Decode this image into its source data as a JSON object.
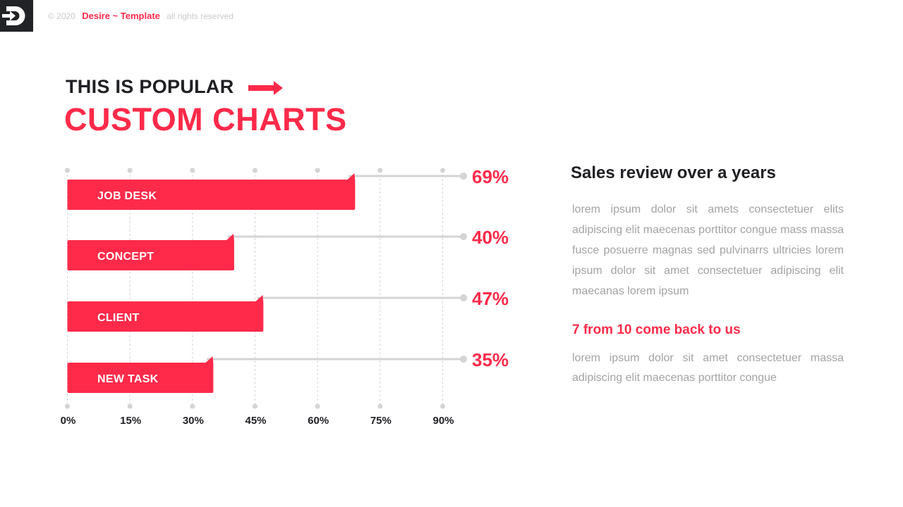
{
  "header": {
    "copyright": "© 2020",
    "brand": "Desire ~ Template",
    "rights": "all rights reserved",
    "logo_icon": "d-arrow-logo-icon"
  },
  "title": {
    "pre": "THIS IS POPULAR",
    "main": "CUSTOM CHARTS",
    "arrow_icon": "arrow-right-icon"
  },
  "chart_data": {
    "type": "bar",
    "orientation": "horizontal",
    "categories": [
      "JOB DESK",
      "CONCEPT",
      "CLIENT",
      "NEW TASK"
    ],
    "values": [
      69,
      40,
      47,
      35
    ],
    "value_labels": [
      "69%",
      "40%",
      "47%",
      "35%"
    ],
    "x_ticks": [
      "0%",
      "15%",
      "30%",
      "45%",
      "60%",
      "75%",
      "90%"
    ],
    "xlim": [
      0,
      90
    ],
    "grid": true,
    "title": "",
    "xlabel": "",
    "ylabel": ""
  },
  "side": {
    "title": "Sales review over a years",
    "body": "lorem ipsum dolor sit amets consectetuer elits adipiscing elit maecenas porttitor congue mass massa fusce posuerre magnas sed pulvinarrs ultricies lorem ipsum dolor sit amet consectetuer adipiscing elit maecanas lorem ipsum",
    "subtitle": "7 from 10 come back to us",
    "body2": "lorem ipsum dolor sit amet consectetuer massa adipiscing elit maecenas porttitor congue"
  },
  "colors": {
    "accent": "#ff2a4a",
    "dark": "#1f1f24",
    "muted": "#a3a3a3",
    "grid": "#d4d4d4"
  }
}
